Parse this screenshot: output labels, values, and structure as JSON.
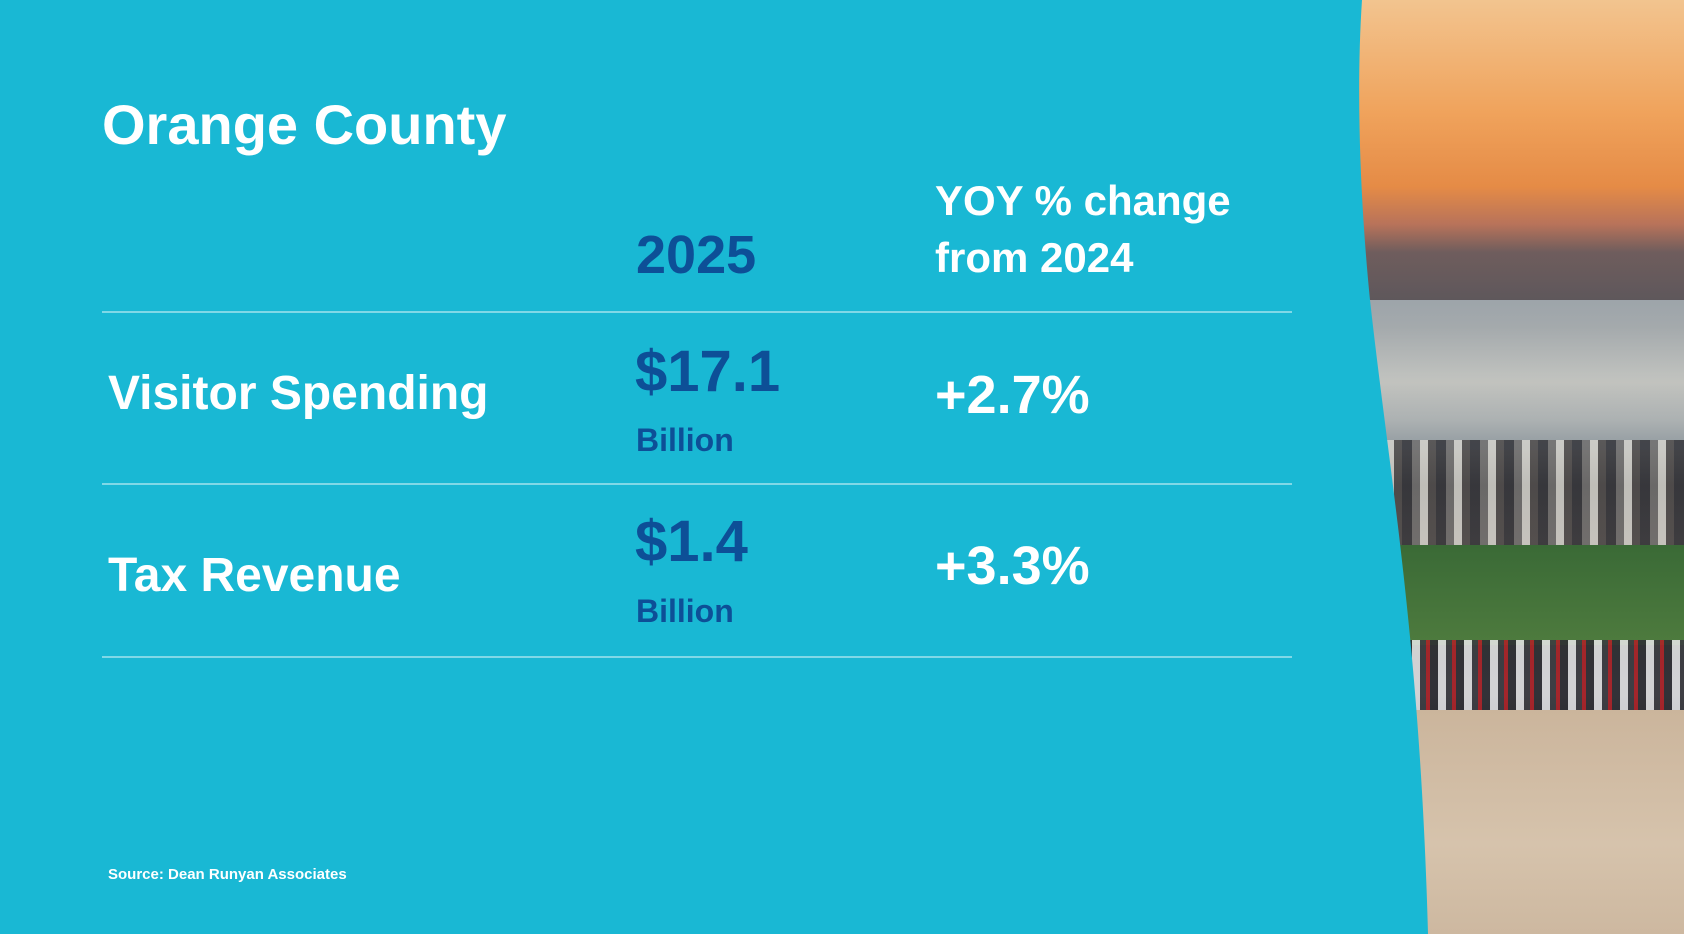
{
  "slide": {
    "title": "Orange County",
    "header": {
      "year": "2025",
      "yoy_line1": "YOY % change",
      "yoy_line2": "from 2024"
    },
    "rows": [
      {
        "label": "Visitor Spending",
        "value": "$17.1",
        "unit": "Billion",
        "change": "+2.7%"
      },
      {
        "label": "Tax Revenue",
        "value": "$1.4",
        "unit": "Billion",
        "change": "+3.3%"
      }
    ],
    "source": "Source: Dean Runyan Associates"
  },
  "colors": {
    "background": "#19b8d4",
    "value_text": "#0d4f97",
    "label_text": "#ffffff"
  }
}
